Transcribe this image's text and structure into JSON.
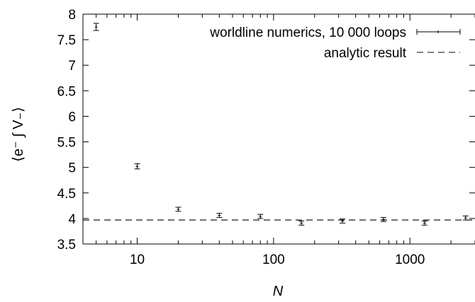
{
  "chart_data": {
    "type": "scatter",
    "title": "",
    "xlabel": "N",
    "ylabel": "⟨e⁻ ∫ V₋⟩",
    "x_scale": "log",
    "xlim": [
      4,
      3000
    ],
    "ylim": [
      3.5,
      8
    ],
    "x_ticks": [
      10,
      100,
      1000
    ],
    "y_ticks": [
      3.5,
      4,
      4.5,
      5,
      5.5,
      6,
      6.5,
      7,
      7.5,
      8
    ],
    "x_tick_labels": [
      "10",
      "100",
      "1000"
    ],
    "y_tick_labels": [
      "3.5",
      "4",
      "4.5",
      "5",
      "5.5",
      "6",
      "6.5",
      "7",
      "7.5",
      "8"
    ],
    "grid": false,
    "legend_position": "top-right",
    "series": [
      {
        "name": "worldline numerics, 10 000 loops",
        "style": "errorbars",
        "x": [
          5,
          10,
          20,
          40,
          80,
          160,
          320,
          640,
          1280,
          2560
        ],
        "y": [
          7.75,
          5.02,
          4.18,
          4.06,
          4.04,
          3.91,
          3.95,
          3.98,
          3.91,
          4.01
        ],
        "err": [
          0.07,
          0.05,
          0.04,
          0.04,
          0.04,
          0.04,
          0.04,
          0.04,
          0.04,
          0.04
        ]
      },
      {
        "name": "analytic result",
        "style": "dashed-line",
        "y_const": 3.97
      }
    ]
  }
}
